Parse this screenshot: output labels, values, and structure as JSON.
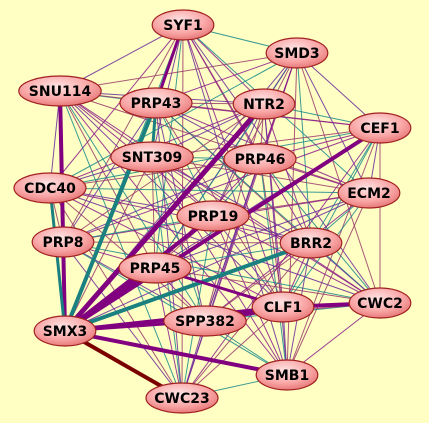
{
  "nodes": [
    {
      "label": "SYF1"
    },
    {
      "label": "SMD3"
    },
    {
      "label": "SNU114"
    },
    {
      "label": "PRP43"
    },
    {
      "label": "NTR2"
    },
    {
      "label": "CEF1"
    },
    {
      "label": "SNT309"
    },
    {
      "label": "PRP46"
    },
    {
      "label": "CDC40"
    },
    {
      "label": "ECM2"
    },
    {
      "label": "PRP19"
    },
    {
      "label": "PRP8"
    },
    {
      "label": "BRR2"
    },
    {
      "label": "PRP45"
    },
    {
      "label": "CWC2"
    },
    {
      "label": "SPP382"
    },
    {
      "label": "CLF1"
    },
    {
      "label": "SMX3"
    },
    {
      "label": "SMB1"
    },
    {
      "label": "CWC23"
    }
  ]
}
